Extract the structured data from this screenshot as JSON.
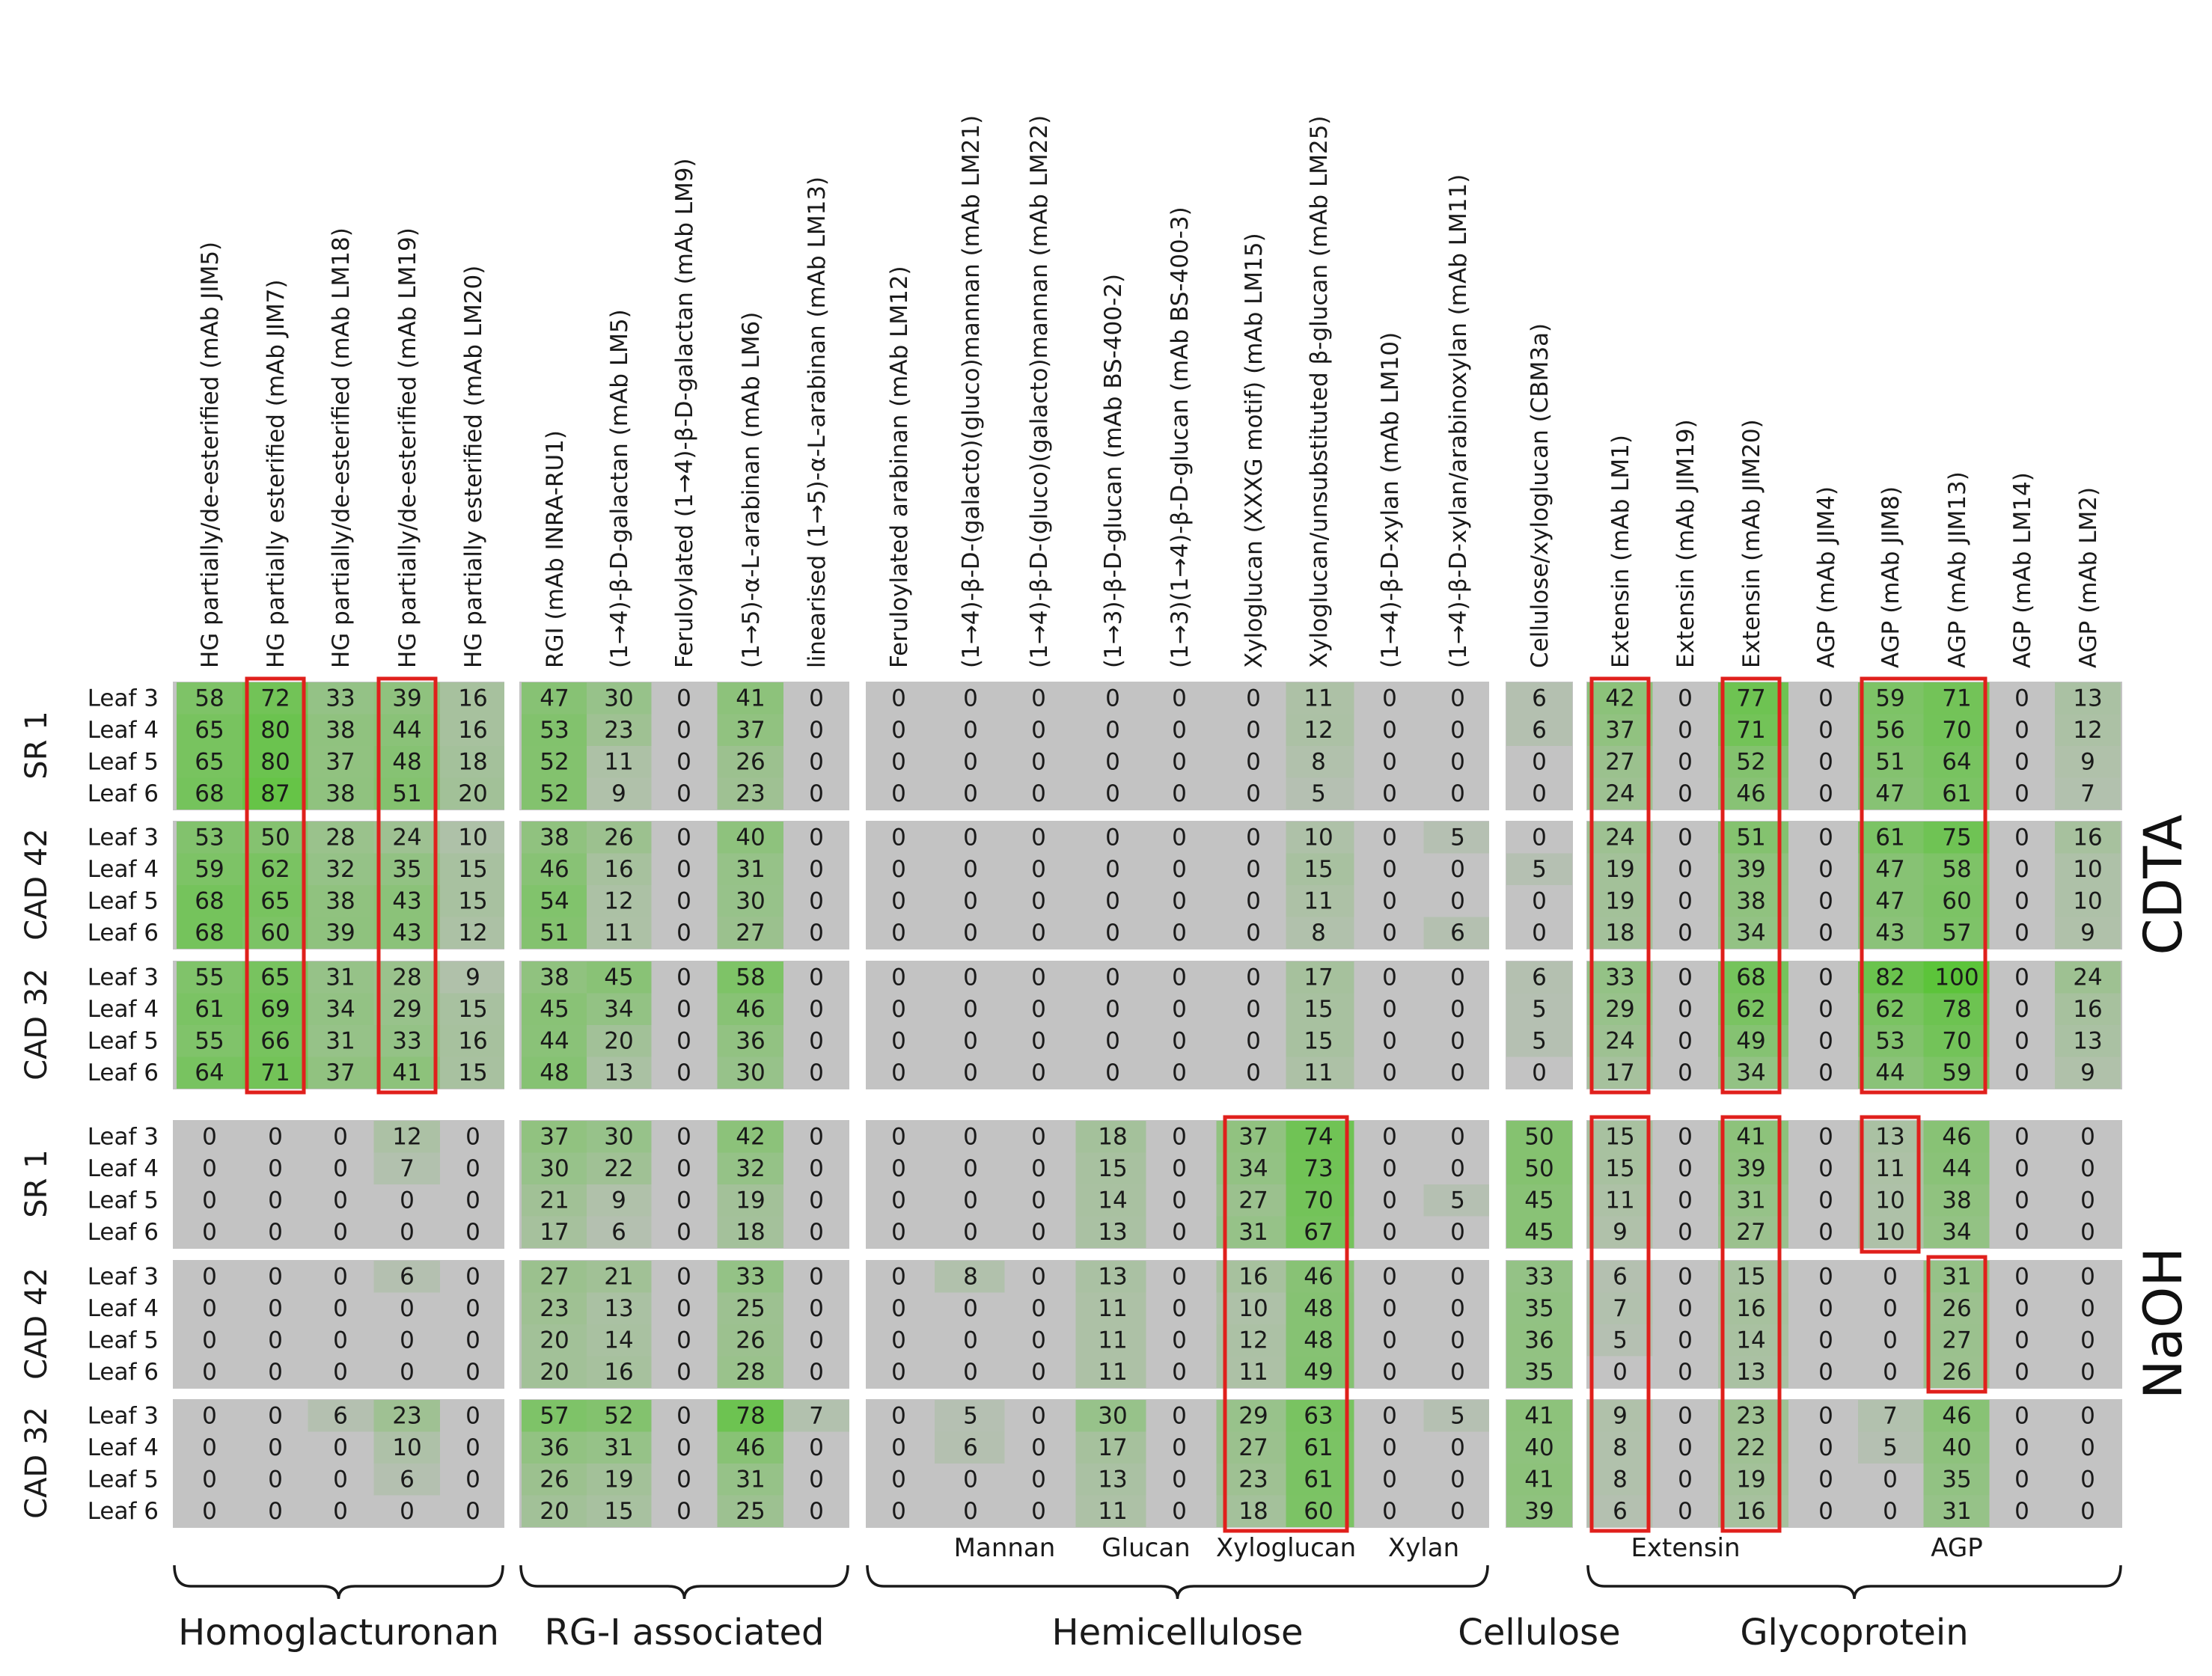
{
  "chart_data": {
    "type": "heatmap",
    "color_scale": {
      "low": "#c0c0c0",
      "high": "#5cc43a",
      "max_value": 100
    },
    "highlight_color": "#e0201c",
    "columns": [
      "HG partially/de-esterified (mAb JIM5)",
      "HG partially esterified (mAb JIM7)",
      "HG partially/de-esterified (mAb LM18)",
      "HG partially/de-esterified (mAb LM19)",
      "HG partially esterified (mAb LM20)",
      "RGI (mAb INRA-RU1)",
      "(1→4)-β-D-galactan (mAb LM5)",
      "Feruloylated (1→4)-β-D-galactan (mAb LM9)",
      "(1→5)-α-L-arabinan (mAb LM6)",
      "linearised (1→5)-α-L-arabinan (mAb LM13)",
      "Feruloylated arabinan (mAb LM12)",
      "(1→4)-β-D-(galacto)(gluco)mannan (mAb LM21)",
      "(1→4)-β-D-(gluco)(galacto)mannan (mAb LM22)",
      "(1→3)-β-D-glucan (mAb BS-400-2)",
      "(1→3)(1→4)-β-D-glucan (mAb BS-400-3)",
      "Xyloglucan (XXXG motif) (mAb LM15)",
      "Xyloglucan/unsubstituted β-glucan (mAb LM25)",
      "(1→4)-β-D-xylan (mAb LM10)",
      "(1→4)-β-D-xylan/arabinoxylan (mAb LM11)",
      "Cellulose/xyloglucan (CBM3a)",
      "Extensin (mAb LM1)",
      "Extensin (mAb JIM19)",
      "Extensin (mAb JIM20)",
      "AGP (mAb JIM4)",
      "AGP (mAb JIM8)",
      "AGP (mAb JIM13)",
      "AGP (mAb LM14)",
      "AGP (mAb LM2)"
    ],
    "row_labels": [
      "Leaf 3",
      "Leaf 4",
      "Leaf 5",
      "Leaf 6"
    ],
    "blocks": [
      {
        "extraction": "CDTA",
        "line": "SR 1",
        "rows": [
          [
            58,
            72,
            33,
            39,
            16,
            47,
            30,
            0,
            41,
            0,
            0,
            0,
            0,
            0,
            0,
            0,
            11,
            0,
            0,
            6,
            42,
            0,
            77,
            0,
            59,
            71,
            0,
            13
          ],
          [
            65,
            80,
            38,
            44,
            16,
            53,
            23,
            0,
            37,
            0,
            0,
            0,
            0,
            0,
            0,
            0,
            12,
            0,
            0,
            6,
            37,
            0,
            71,
            0,
            56,
            70,
            0,
            12
          ],
          [
            65,
            80,
            37,
            48,
            18,
            52,
            11,
            0,
            26,
            0,
            0,
            0,
            0,
            0,
            0,
            0,
            8,
            0,
            0,
            0,
            27,
            0,
            52,
            0,
            51,
            64,
            0,
            9
          ],
          [
            68,
            87,
            38,
            51,
            20,
            52,
            9,
            0,
            23,
            0,
            0,
            0,
            0,
            0,
            0,
            0,
            5,
            0,
            0,
            0,
            24,
            0,
            46,
            0,
            47,
            61,
            0,
            7
          ]
        ]
      },
      {
        "extraction": "CDTA",
        "line": "CAD 42",
        "rows": [
          [
            53,
            50,
            28,
            24,
            10,
            38,
            26,
            0,
            40,
            0,
            0,
            0,
            0,
            0,
            0,
            0,
            10,
            0,
            5,
            0,
            24,
            0,
            51,
            0,
            61,
            75,
            0,
            16
          ],
          [
            59,
            62,
            32,
            35,
            15,
            46,
            16,
            0,
            31,
            0,
            0,
            0,
            0,
            0,
            0,
            0,
            15,
            0,
            0,
            5,
            19,
            0,
            39,
            0,
            47,
            58,
            0,
            10
          ],
          [
            68,
            65,
            38,
            43,
            15,
            54,
            12,
            0,
            30,
            0,
            0,
            0,
            0,
            0,
            0,
            0,
            11,
            0,
            0,
            0,
            19,
            0,
            38,
            0,
            47,
            60,
            0,
            10
          ],
          [
            68,
            60,
            39,
            43,
            12,
            51,
            11,
            0,
            27,
            0,
            0,
            0,
            0,
            0,
            0,
            0,
            8,
            0,
            6,
            0,
            18,
            0,
            34,
            0,
            43,
            57,
            0,
            9
          ]
        ]
      },
      {
        "extraction": "CDTA",
        "line": "CAD 32",
        "rows": [
          [
            55,
            65,
            31,
            28,
            9,
            38,
            45,
            0,
            58,
            0,
            0,
            0,
            0,
            0,
            0,
            0,
            17,
            0,
            0,
            6,
            33,
            0,
            68,
            0,
            82,
            100,
            0,
            24
          ],
          [
            61,
            69,
            34,
            29,
            15,
            45,
            34,
            0,
            46,
            0,
            0,
            0,
            0,
            0,
            0,
            0,
            15,
            0,
            0,
            5,
            29,
            0,
            62,
            0,
            62,
            78,
            0,
            16
          ],
          [
            55,
            66,
            31,
            33,
            16,
            44,
            20,
            0,
            36,
            0,
            0,
            0,
            0,
            0,
            0,
            0,
            15,
            0,
            0,
            5,
            24,
            0,
            49,
            0,
            53,
            70,
            0,
            13
          ],
          [
            64,
            71,
            37,
            41,
            15,
            48,
            13,
            0,
            30,
            0,
            0,
            0,
            0,
            0,
            0,
            0,
            11,
            0,
            0,
            0,
            17,
            0,
            34,
            0,
            44,
            59,
            0,
            9
          ]
        ]
      },
      {
        "extraction": "NaOH",
        "line": "SR 1",
        "rows": [
          [
            0,
            0,
            0,
            12,
            0,
            37,
            30,
            0,
            42,
            0,
            0,
            0,
            0,
            18,
            0,
            37,
            74,
            0,
            0,
            50,
            15,
            0,
            41,
            0,
            13,
            46,
            0,
            0
          ],
          [
            0,
            0,
            0,
            7,
            0,
            30,
            22,
            0,
            32,
            0,
            0,
            0,
            0,
            15,
            0,
            34,
            73,
            0,
            0,
            50,
            15,
            0,
            39,
            0,
            11,
            44,
            0,
            0
          ],
          [
            0,
            0,
            0,
            0,
            0,
            21,
            9,
            0,
            19,
            0,
            0,
            0,
            0,
            14,
            0,
            27,
            70,
            0,
            5,
            45,
            11,
            0,
            31,
            0,
            10,
            38,
            0,
            0
          ],
          [
            0,
            0,
            0,
            0,
            0,
            17,
            6,
            0,
            18,
            0,
            0,
            0,
            0,
            13,
            0,
            31,
            67,
            0,
            0,
            45,
            9,
            0,
            27,
            0,
            10,
            34,
            0,
            0
          ]
        ]
      },
      {
        "extraction": "NaOH",
        "line": "CAD 42",
        "rows": [
          [
            0,
            0,
            0,
            6,
            0,
            27,
            21,
            0,
            33,
            0,
            0,
            8,
            0,
            13,
            0,
            16,
            46,
            0,
            0,
            33,
            6,
            0,
            15,
            0,
            0,
            31,
            0,
            0
          ],
          [
            0,
            0,
            0,
            0,
            0,
            23,
            13,
            0,
            25,
            0,
            0,
            0,
            0,
            11,
            0,
            10,
            48,
            0,
            0,
            35,
            7,
            0,
            16,
            0,
            0,
            26,
            0,
            0
          ],
          [
            0,
            0,
            0,
            0,
            0,
            20,
            14,
            0,
            26,
            0,
            0,
            0,
            0,
            11,
            0,
            12,
            48,
            0,
            0,
            36,
            5,
            0,
            14,
            0,
            0,
            27,
            0,
            0
          ],
          [
            0,
            0,
            0,
            0,
            0,
            20,
            16,
            0,
            28,
            0,
            0,
            0,
            0,
            11,
            0,
            11,
            49,
            0,
            0,
            35,
            0,
            0,
            13,
            0,
            0,
            26,
            0,
            0
          ]
        ]
      },
      {
        "extraction": "NaOH",
        "line": "CAD 32",
        "rows": [
          [
            0,
            0,
            6,
            23,
            0,
            57,
            52,
            0,
            78,
            7,
            0,
            5,
            0,
            30,
            0,
            29,
            63,
            0,
            5,
            41,
            9,
            0,
            23,
            0,
            7,
            46,
            0,
            0
          ],
          [
            0,
            0,
            0,
            10,
            0,
            36,
            31,
            0,
            46,
            0,
            0,
            6,
            0,
            17,
            0,
            27,
            61,
            0,
            0,
            40,
            8,
            0,
            22,
            0,
            5,
            40,
            0,
            0
          ],
          [
            0,
            0,
            0,
            6,
            0,
            26,
            19,
            0,
            31,
            0,
            0,
            0,
            0,
            13,
            0,
            23,
            61,
            0,
            0,
            41,
            8,
            0,
            19,
            0,
            0,
            35,
            0,
            0
          ],
          [
            0,
            0,
            0,
            0,
            0,
            20,
            15,
            0,
            25,
            0,
            0,
            0,
            0,
            11,
            0,
            18,
            60,
            0,
            0,
            39,
            6,
            0,
            16,
            0,
            0,
            31,
            0,
            0
          ]
        ]
      }
    ],
    "extractions": [
      "CDTA",
      "NaOH"
    ],
    "subgroups": [
      {
        "label": "Mannan",
        "columns": [
          11,
          12
        ]
      },
      {
        "label": "Glucan",
        "columns": [
          13,
          14
        ]
      },
      {
        "label": "Xyloglucan",
        "columns": [
          15,
          16
        ]
      },
      {
        "label": "Xylan",
        "columns": [
          17,
          18
        ]
      },
      {
        "label": "Extensin",
        "columns": [
          20,
          22
        ]
      },
      {
        "label": "AGP",
        "columns": [
          23,
          27
        ]
      }
    ],
    "groups": [
      {
        "label": "Homoglacturonan",
        "columns": [
          0,
          4
        ]
      },
      {
        "label": "RG-I associated",
        "columns": [
          5,
          9
        ]
      },
      {
        "label": "Hemicellulose",
        "columns": [
          10,
          18
        ]
      },
      {
        "label": "Cellulose",
        "columns": [
          19,
          19
        ]
      },
      {
        "label": "Glycoprotein",
        "columns": [
          20,
          27
        ]
      }
    ],
    "highlights": [
      {
        "columns": [
          1,
          1
        ],
        "blocks": [
          0,
          2
        ]
      },
      {
        "columns": [
          3,
          3
        ],
        "blocks": [
          0,
          2
        ]
      },
      {
        "columns": [
          20,
          20
        ],
        "blocks": [
          0,
          2
        ]
      },
      {
        "columns": [
          22,
          22
        ],
        "blocks": [
          0,
          2
        ]
      },
      {
        "columns": [
          24,
          25
        ],
        "blocks": [
          0,
          2
        ]
      },
      {
        "columns": [
          15,
          16
        ],
        "blocks": [
          3,
          5
        ]
      },
      {
        "columns": [
          20,
          20
        ],
        "blocks": [
          3,
          5
        ]
      },
      {
        "columns": [
          22,
          22
        ],
        "blocks": [
          3,
          5
        ]
      },
      {
        "columns": [
          24,
          24
        ],
        "blocks": [
          3,
          3
        ]
      },
      {
        "columns": [
          25,
          25
        ],
        "blocks": [
          4,
          4
        ]
      }
    ]
  }
}
